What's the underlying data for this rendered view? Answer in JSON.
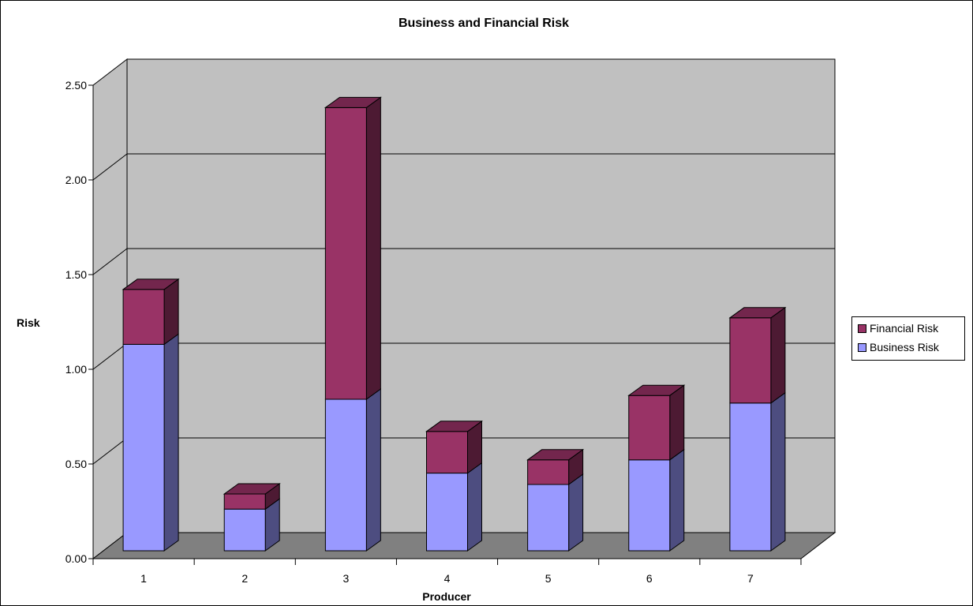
{
  "chart_data": {
    "type": "bar",
    "stacked": true,
    "three_d": true,
    "title": "Business and Financial Risk",
    "xlabel": "Producer",
    "ylabel": "Risk",
    "categories": [
      "1",
      "2",
      "3",
      "4",
      "5",
      "6",
      "7"
    ],
    "ylim": [
      0,
      2.5
    ],
    "yticks": [
      "0.00",
      "0.50",
      "1.00",
      "1.50",
      "2.00",
      "2.50"
    ],
    "series": [
      {
        "name": "Business Risk",
        "values": [
          1.09,
          0.22,
          0.8,
          0.41,
          0.35,
          0.48,
          0.78
        ],
        "color": "#9999FF"
      },
      {
        "name": "Financial Risk",
        "values": [
          0.29,
          0.08,
          1.54,
          0.22,
          0.13,
          0.34,
          0.45
        ],
        "color": "#993366"
      }
    ],
    "legend_position": "right",
    "grid": true,
    "wall_color": "#C0C0C0",
    "floor_color": "#808080"
  }
}
